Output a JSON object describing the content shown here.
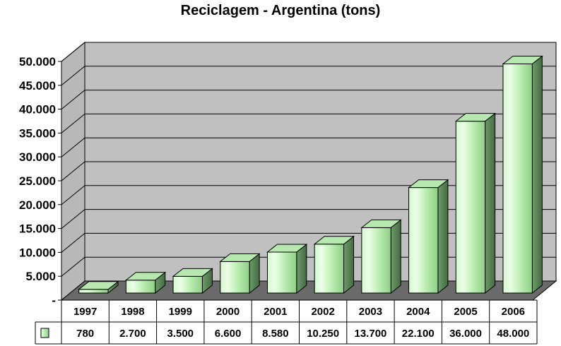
{
  "chart_data": {
    "type": "bar",
    "title": "Reciclagem - Argentina (tons)",
    "categories": [
      "1997",
      "1998",
      "1999",
      "2000",
      "2001",
      "2002",
      "2003",
      "2004",
      "2005",
      "2006"
    ],
    "series": [
      {
        "values": [
          780,
          2700,
          3500,
          6600,
          8580,
          10250,
          13700,
          22100,
          36000,
          48000
        ]
      }
    ],
    "value_labels": [
      "780",
      "2.700",
      "3.500",
      "6.600",
      "8.580",
      "10.250",
      "13.700",
      "22.100",
      "36.000",
      "48.000"
    ],
    "y_tick_labels": [
      "-",
      "5.000",
      "10.000",
      "15.000",
      "20.000",
      "25.000",
      "30.000",
      "35.000",
      "40.000",
      "45.000",
      "50.000"
    ],
    "ylim": [
      0,
      50000
    ],
    "ytick_step": 5000,
    "grid": true,
    "data_table": true,
    "colors": {
      "bar_front": "#c8f5c0",
      "bar_light": "#e6ffe0",
      "bar_dark": "#5f8a5c",
      "wall": "#c0c0c0",
      "floor": "#6a6a6a",
      "grid": "#000000"
    }
  }
}
